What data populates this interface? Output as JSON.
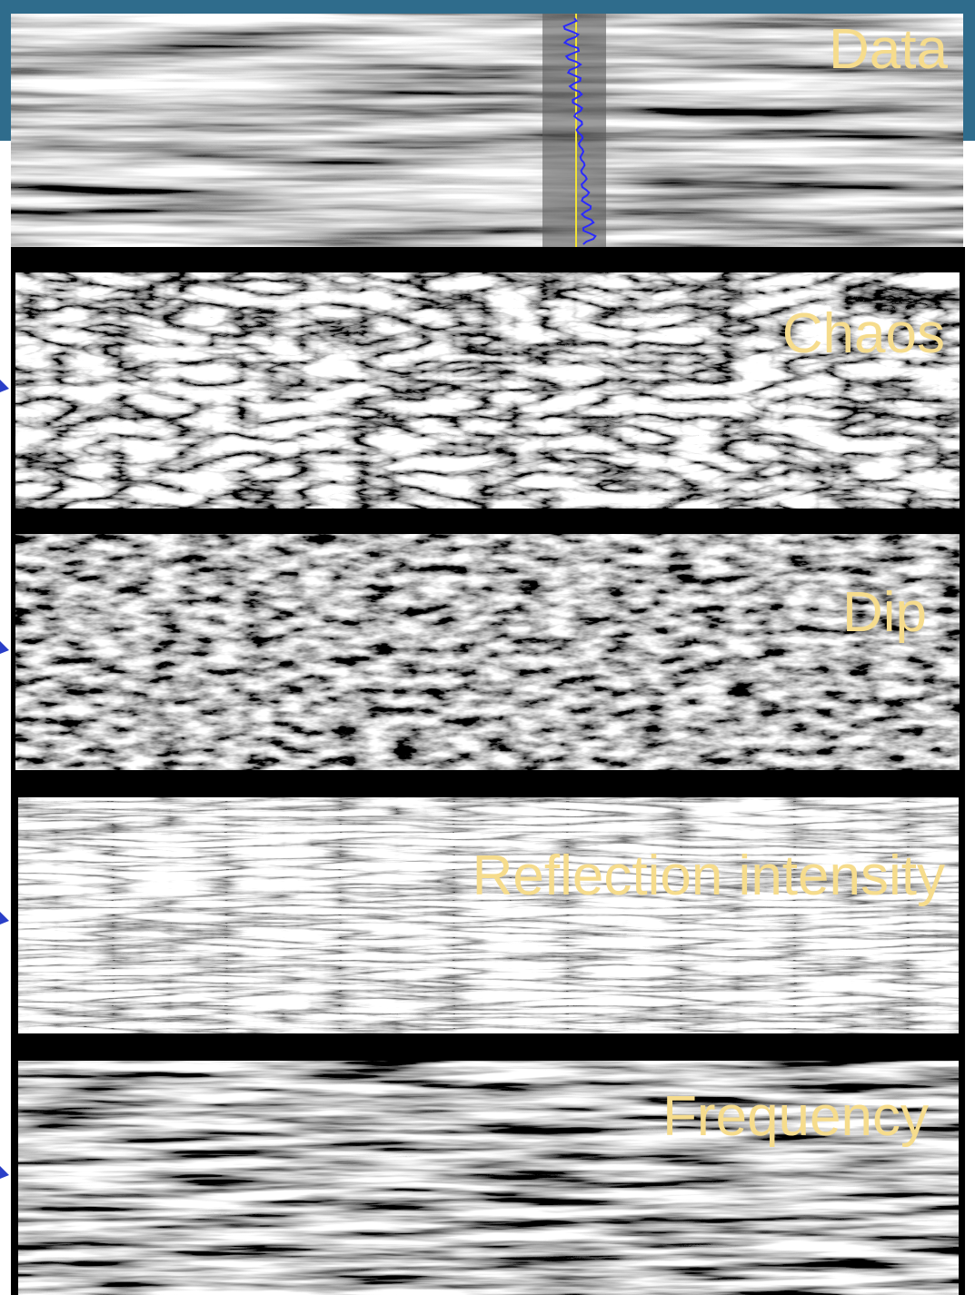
{
  "panels": [
    {
      "label": "Data"
    },
    {
      "label": "Chaos"
    },
    {
      "label": "Dip"
    },
    {
      "label": "Reflection intensity"
    },
    {
      "label": "Frequency"
    }
  ]
}
